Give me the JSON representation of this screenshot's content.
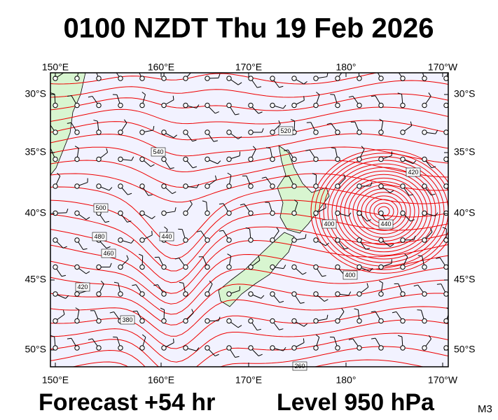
{
  "header": {
    "title": "0100 NZDT Thu 19 Feb 2026"
  },
  "map": {
    "lon_labels": [
      "150°E",
      "160°E",
      "170°E",
      "180°",
      "170°W"
    ],
    "lat_labels": [
      "30°S",
      "35°S",
      "40°S",
      "45°S",
      "50°S"
    ],
    "contour_labels": [
      "540",
      "520",
      "500",
      "480",
      "460",
      "440",
      "420",
      "400",
      "260",
      "440",
      "420",
      "400",
      "380"
    ]
  },
  "footer": {
    "forecast": "Forecast +54 hr",
    "level": "Level 950 hPa",
    "code": "M3"
  }
}
